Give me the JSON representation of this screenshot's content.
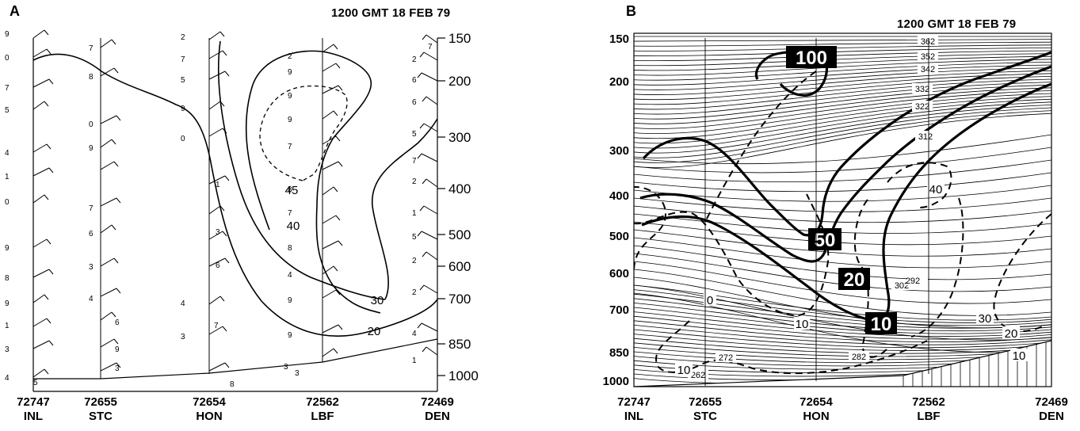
{
  "panel_a": {
    "label": "A",
    "time": "1200 GMT 18 FEB 79",
    "pressure_ticks": [
      "150",
      "200",
      "300",
      "400",
      "500",
      "600",
      "700",
      "850",
      "1000"
    ],
    "stations": [
      {
        "id": "72747",
        "name": "INL"
      },
      {
        "id": "72655",
        "name": "STC"
      },
      {
        "id": "72654",
        "name": "HON"
      },
      {
        "id": "72562",
        "name": "LBF"
      },
      {
        "id": "72469",
        "name": "DEN"
      }
    ],
    "contour_labels": [
      "45",
      "40",
      "30",
      "20"
    ],
    "wind_digits": [
      "9",
      "0",
      "7",
      "5",
      "4",
      "1",
      "0",
      "9",
      "8",
      "9",
      "1",
      "3",
      "4",
      "7",
      "8",
      "0",
      "9",
      "7",
      "6",
      "3",
      "4",
      "6",
      "9",
      "3",
      "2",
      "7",
      "5",
      "9",
      "0",
      "4",
      "3",
      "2",
      "9",
      "9",
      "9",
      "7",
      "8",
      "7",
      "8",
      "4",
      "9",
      "9",
      "7",
      "8",
      "3",
      "1",
      "3",
      "6",
      "7",
      "2",
      "6",
      "6",
      "5",
      "7",
      "2",
      "1",
      "5",
      "2",
      "2",
      "4",
      "1",
      "3",
      "5"
    ]
  },
  "panel_b": {
    "label": "B",
    "time": "1200 GMT 18 FEB 79",
    "pressure_ticks": [
      "150",
      "200",
      "300",
      "400",
      "500",
      "600",
      "700",
      "850",
      "1000"
    ],
    "stations": [
      {
        "id": "72747",
        "name": "INL"
      },
      {
        "id": "72655",
        "name": "STC"
      },
      {
        "id": "72654",
        "name": "HON"
      },
      {
        "id": "72562",
        "name": "LBF"
      },
      {
        "id": "72469",
        "name": "DEN"
      }
    ],
    "isentrope_labels": [
      "362",
      "352",
      "342",
      "332",
      "322",
      "312",
      "302",
      "292",
      "282",
      "272",
      "262"
    ],
    "boxed_labels": [
      "100",
      "50",
      "20",
      "10"
    ],
    "dashed_labels": [
      "40",
      "0",
      "10",
      "30",
      "20",
      "10",
      "10"
    ]
  }
}
